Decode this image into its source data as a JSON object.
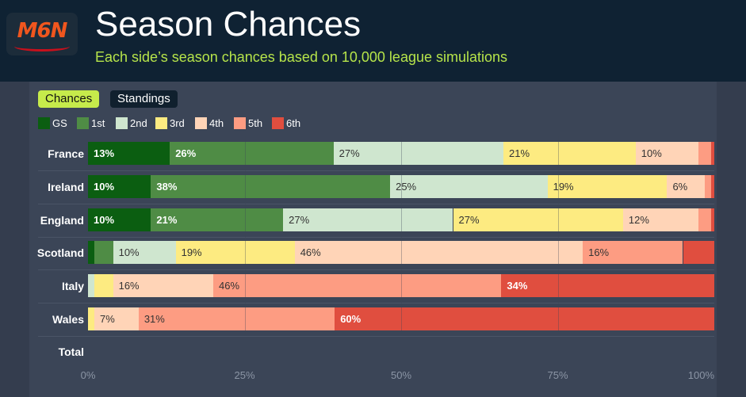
{
  "header": {
    "logo_text": "M6N",
    "title": "Season Chances",
    "subtitle": "Each side’s season chances based on 10,000 league simulations"
  },
  "toggle": {
    "chances_label": "Chances",
    "standings_label": "Standings",
    "active": "Chances"
  },
  "total_label": "Total",
  "colors": {
    "header_bg": "#0f2233",
    "accent": "#c6eb4b",
    "GS": "#0b5e11",
    "1st": "#4f8c45",
    "2nd": "#cfe6cf",
    "3rd": "#fdeb81",
    "4th": "#ffd4b7",
    "5th": "#fd9c82",
    "6th": "#e04e3f"
  },
  "chart_data": {
    "type": "bar",
    "orientation": "horizontal",
    "stacked": true,
    "categories": [
      "France",
      "Ireland",
      "England",
      "Scotland",
      "Italy",
      "Wales"
    ],
    "series": [
      {
        "name": "GS",
        "values": [
          13,
          10,
          10,
          1,
          0,
          0
        ]
      },
      {
        "name": "1st",
        "values": [
          26,
          38,
          21,
          3,
          0,
          0
        ]
      },
      {
        "name": "2nd",
        "values": [
          27,
          25,
          27,
          10,
          1,
          0
        ]
      },
      {
        "name": "3rd",
        "values": [
          21,
          19,
          27,
          19,
          3,
          1
        ]
      },
      {
        "name": "4th",
        "values": [
          10,
          6,
          12,
          46,
          16,
          7
        ]
      },
      {
        "name": "5th",
        "values": [
          2,
          1,
          2,
          16,
          46,
          31
        ]
      },
      {
        "name": "6th",
        "values": [
          0.5,
          0.5,
          0.5,
          5,
          34,
          60
        ]
      }
    ],
    "xlim": [
      0,
      100
    ],
    "x_ticks": [
      "0%",
      "25%",
      "50%",
      "75%",
      "100%"
    ],
    "legend_position": "top-left",
    "grid": true
  }
}
